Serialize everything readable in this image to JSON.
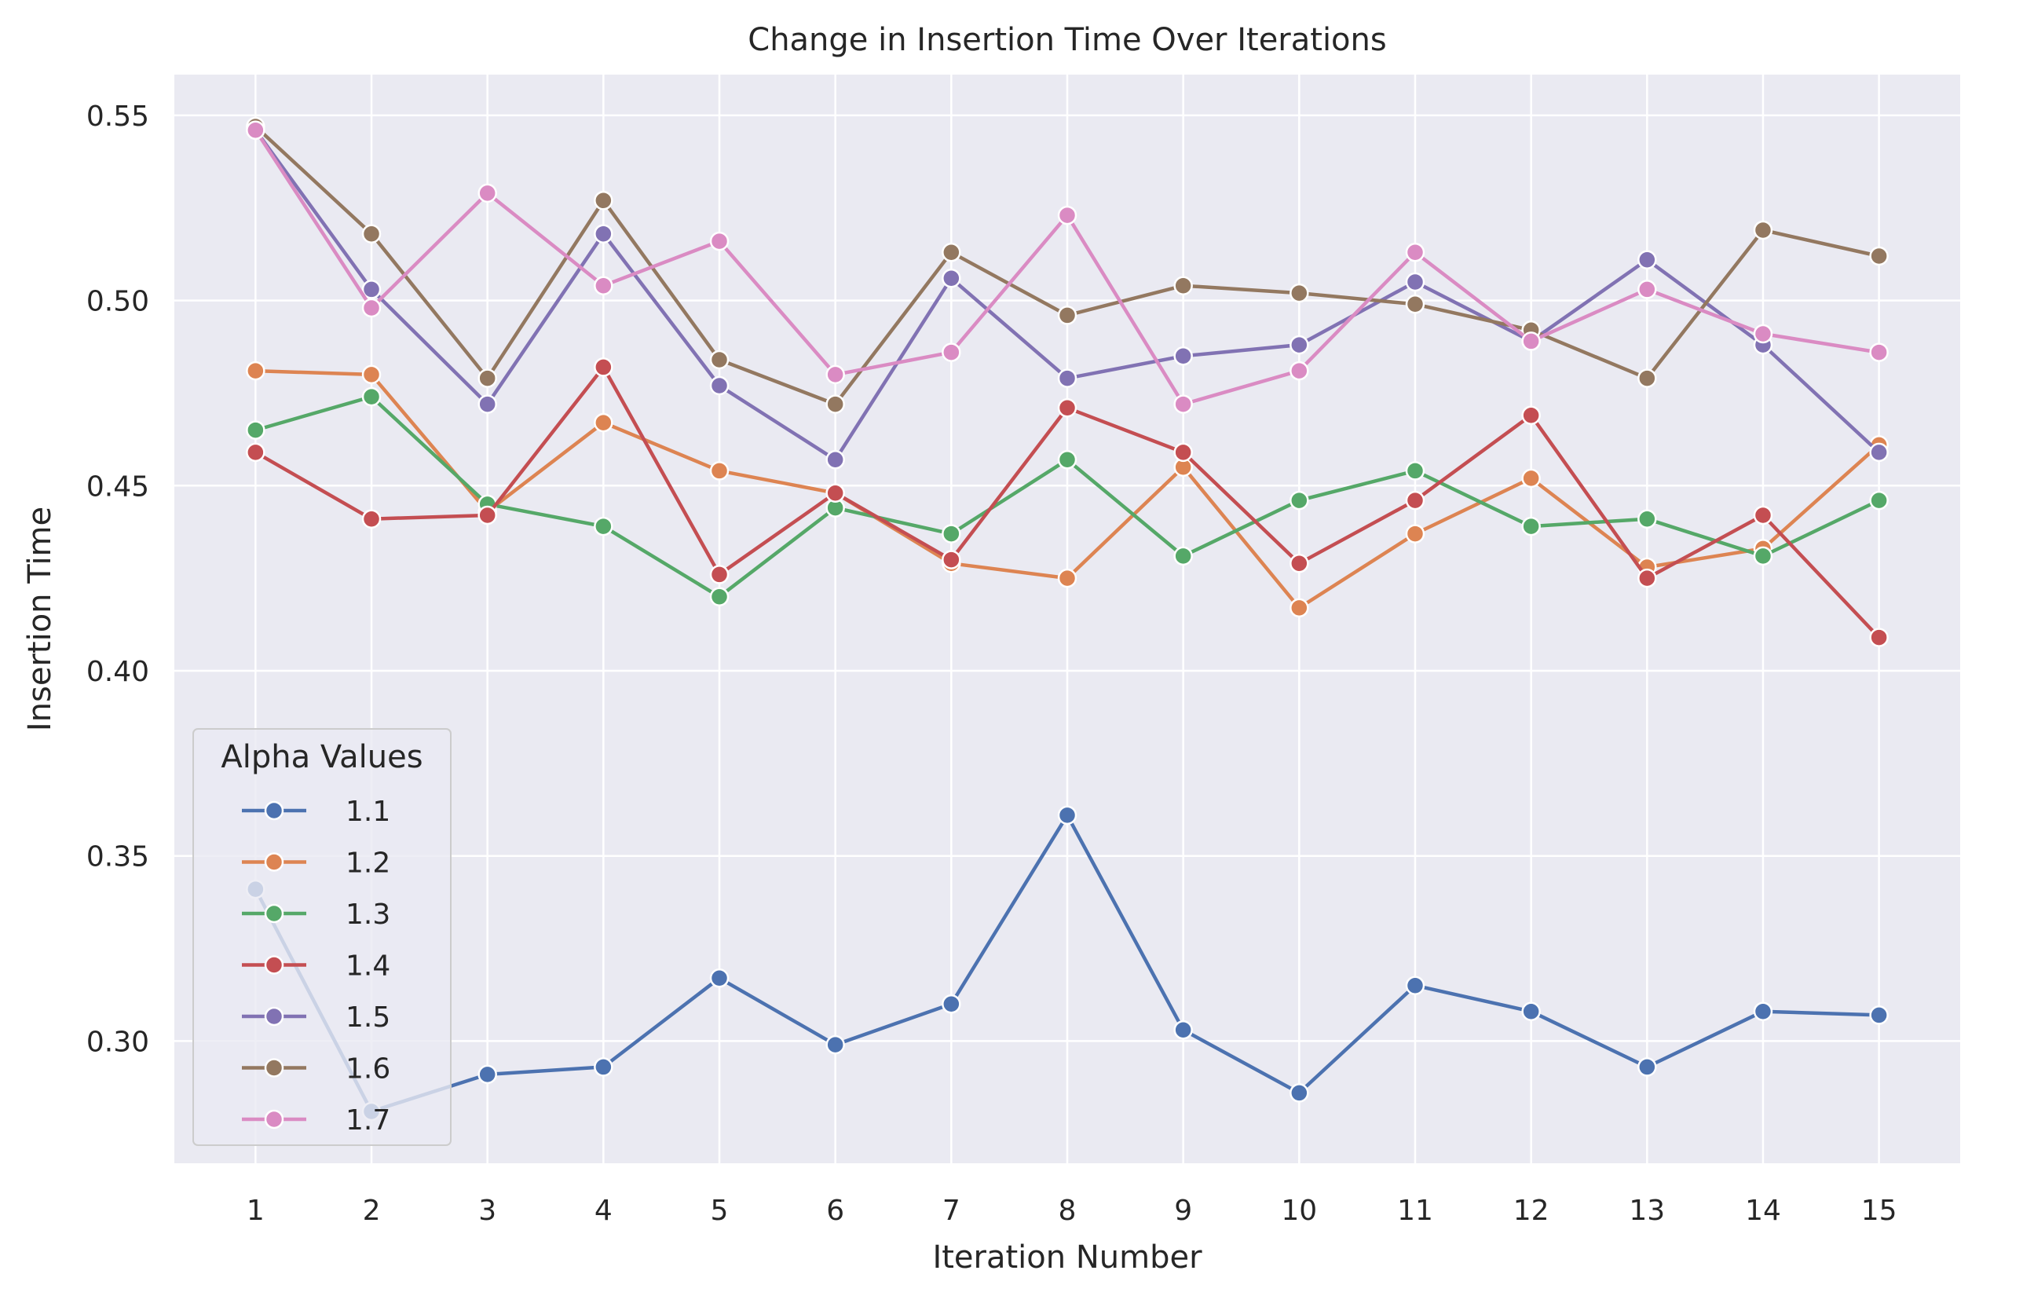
{
  "chart_data": {
    "type": "line",
    "title": "Change in Insertion Time Over Iterations",
    "xlabel": "Iteration Number",
    "ylabel": "Insertion Time",
    "x": [
      1,
      2,
      3,
      4,
      5,
      6,
      7,
      8,
      9,
      10,
      11,
      12,
      13,
      14,
      15
    ],
    "xlim": [
      0.3,
      15.7
    ],
    "ylim": [
      0.267,
      0.561
    ],
    "yticks": [
      0.3,
      0.35,
      0.4,
      0.45,
      0.5,
      0.55
    ],
    "ytick_labels": [
      "0.30",
      "0.35",
      "0.40",
      "0.45",
      "0.50",
      "0.55"
    ],
    "grid": true,
    "legend": {
      "title": "Alpha Values",
      "placement": "lower-left"
    },
    "series": [
      {
        "name": "1.1",
        "color": "#4c72b0",
        "values": [
          0.341,
          0.281,
          0.291,
          0.293,
          0.317,
          0.299,
          0.31,
          0.361,
          0.303,
          0.286,
          0.315,
          0.308,
          0.293,
          0.308,
          0.307
        ]
      },
      {
        "name": "1.2",
        "color": "#dd8452",
        "values": [
          0.481,
          0.48,
          0.443,
          0.467,
          0.454,
          0.448,
          0.429,
          0.425,
          0.455,
          0.417,
          0.437,
          0.452,
          0.428,
          0.433,
          0.461
        ]
      },
      {
        "name": "1.3",
        "color": "#55a868",
        "values": [
          0.465,
          0.474,
          0.445,
          0.439,
          0.42,
          0.444,
          0.437,
          0.457,
          0.431,
          0.446,
          0.454,
          0.439,
          0.441,
          0.431,
          0.446
        ]
      },
      {
        "name": "1.4",
        "color": "#c44e52",
        "values": [
          0.459,
          0.441,
          0.442,
          0.482,
          0.426,
          0.448,
          0.43,
          0.471,
          0.459,
          0.429,
          0.446,
          0.469,
          0.425,
          0.442,
          0.409
        ]
      },
      {
        "name": "1.5",
        "color": "#8172b3",
        "values": [
          0.546,
          0.503,
          0.472,
          0.518,
          0.477,
          0.457,
          0.506,
          0.479,
          0.485,
          0.488,
          0.505,
          0.489,
          0.511,
          0.488,
          0.459
        ]
      },
      {
        "name": "1.6",
        "color": "#937860",
        "values": [
          0.547,
          0.518,
          0.479,
          0.527,
          0.484,
          0.472,
          0.513,
          0.496,
          0.504,
          0.502,
          0.499,
          0.492,
          0.479,
          0.519,
          0.512
        ]
      },
      {
        "name": "1.7",
        "color": "#da8bc3",
        "values": [
          0.546,
          0.498,
          0.529,
          0.504,
          0.516,
          0.48,
          0.486,
          0.523,
          0.472,
          0.481,
          0.513,
          0.489,
          0.503,
          0.491,
          0.486
        ]
      }
    ]
  }
}
